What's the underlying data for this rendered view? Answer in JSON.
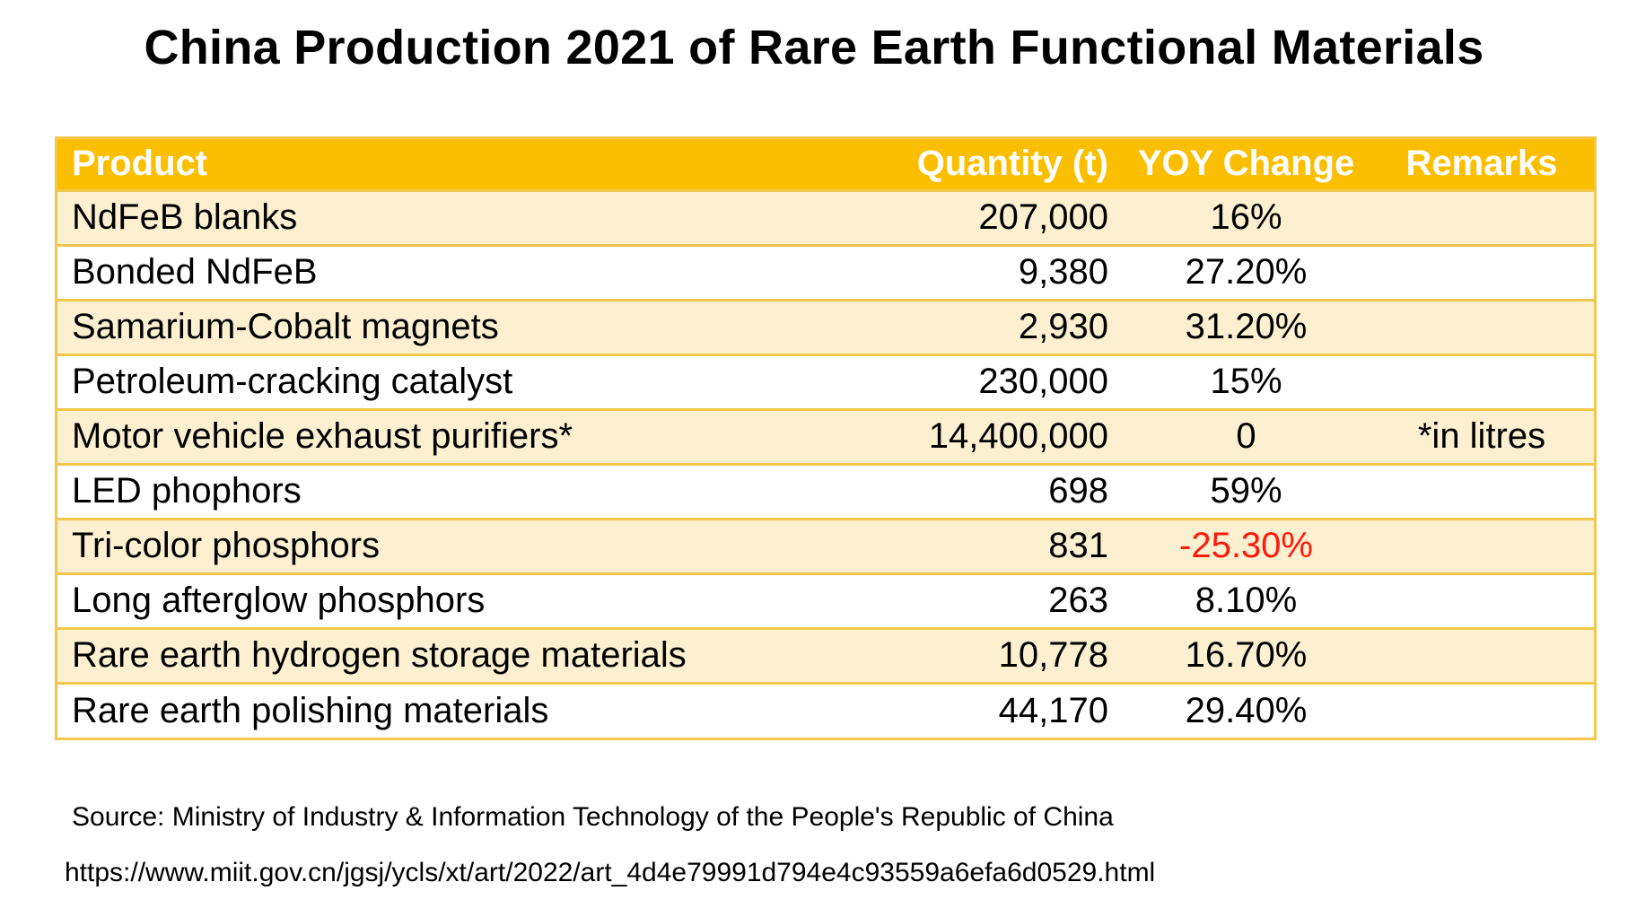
{
  "title": "China Production 2021 of Rare Earth Functional Materials",
  "chart_data": {
    "type": "table",
    "title": "China Production 2021 of Rare Earth Functional Materials",
    "columns": [
      "Product",
      "Quantity (t)",
      "YOY Change",
      "Remarks"
    ],
    "rows": [
      {
        "product": "NdFeB blanks",
        "quantity": "207,000",
        "yoy": "16%",
        "remarks": "",
        "negative": false
      },
      {
        "product": "Bonded NdFeB",
        "quantity": "9,380",
        "yoy": "27.20%",
        "remarks": "",
        "negative": false
      },
      {
        "product": "Samarium-Cobalt magnets",
        "quantity": "2,930",
        "yoy": "31.20%",
        "remarks": "",
        "negative": false
      },
      {
        "product": "Petroleum-cracking catalyst",
        "quantity": "230,000",
        "yoy": "15%",
        "remarks": "",
        "negative": false
      },
      {
        "product": "Motor vehicle exhaust purifiers*",
        "quantity": "14,400,000",
        "yoy": "0",
        "remarks": "*in litres",
        "negative": false
      },
      {
        "product": "LED phophors",
        "quantity": "698",
        "yoy": "59%",
        "remarks": "",
        "negative": false
      },
      {
        "product": "Tri-color phosphors",
        "quantity": "831",
        "yoy": "-25.30%",
        "remarks": "",
        "negative": true
      },
      {
        "product": "Long afterglow phosphors",
        "quantity": "263",
        "yoy": "8.10%",
        "remarks": "",
        "negative": false
      },
      {
        "product": "Rare earth hydrogen storage materials",
        "quantity": "10,778",
        "yoy": "16.70%",
        "remarks": "",
        "negative": false
      },
      {
        "product": "Rare earth polishing materials",
        "quantity": "44,170",
        "yoy": "29.40%",
        "remarks": "",
        "negative": false
      }
    ]
  },
  "source": "Source: Ministry of Industry & Information Technology of the People's Republic of China",
  "url": "https://www.miit.gov.cn/jgsj/ycls/xt/art/2022/art_4d4e79991d794e4c93559a6efa6d0529.html",
  "colors": {
    "header_bg": "#fbbe00",
    "header_text": "#ffffff",
    "odd_row_bg": "#fcf0d0",
    "even_row_bg": "#ffffff",
    "border": "#f3c84a",
    "negative_text": "#ff1a0a"
  }
}
